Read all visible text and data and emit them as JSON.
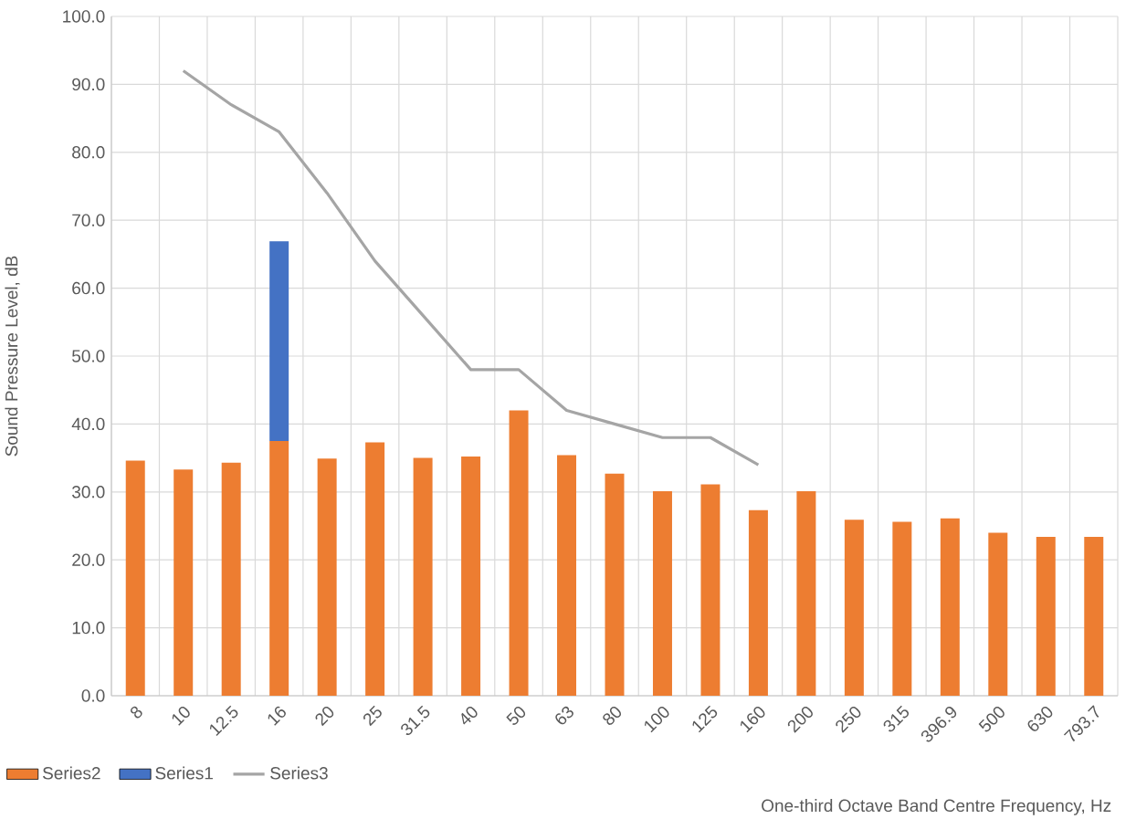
{
  "chart_data": {
    "type": "bar",
    "stacked": true,
    "xlabel": "One-third Octave Band Centre Frequency, Hz",
    "ylabel": "Sound Pressure Level, dB",
    "categories": [
      "8",
      "10",
      "12.5",
      "16",
      "20",
      "25",
      "31.5",
      "40",
      "50",
      "63",
      "80",
      "100",
      "125",
      "160",
      "200",
      "250",
      "315",
      "396.9",
      "500",
      "630",
      "793.7"
    ],
    "series": [
      {
        "name": "Series2",
        "color": "#ed7d31",
        "values": [
          34.6,
          33.3,
          34.3,
          37.5,
          34.9,
          37.3,
          35.0,
          35.2,
          42.0,
          35.4,
          32.7,
          30.1,
          31.1,
          27.3,
          30.1,
          25.9,
          25.6,
          26.1,
          24.0,
          23.4,
          23.4
        ]
      },
      {
        "name": "Series1",
        "color": "#4472c4",
        "values": [
          null,
          null,
          null,
          29.4,
          null,
          null,
          null,
          null,
          null,
          null,
          null,
          null,
          null,
          null,
          null,
          null,
          null,
          null,
          null,
          null,
          null
        ]
      },
      {
        "name": "Series3",
        "type": "line",
        "color": "#a5a5a5",
        "values": [
          null,
          92,
          87,
          83,
          74,
          64,
          56,
          48,
          48,
          42,
          40,
          38,
          38,
          34,
          null,
          null,
          null,
          null,
          null,
          null,
          null
        ]
      }
    ],
    "ylim": [
      0,
      100
    ],
    "yticks": [
      {
        "value": 0,
        "label": "0.0"
      },
      {
        "value": 10,
        "label": "10.0"
      },
      {
        "value": 20,
        "label": "20.0"
      },
      {
        "value": 30,
        "label": "30.0"
      },
      {
        "value": 40,
        "label": "40.0"
      },
      {
        "value": 50,
        "label": "50.0"
      },
      {
        "value": 60,
        "label": "60.0"
      },
      {
        "value": 70,
        "label": "70.0"
      },
      {
        "value": 80,
        "label": "80.0"
      },
      {
        "value": 90,
        "label": "90.0"
      },
      {
        "value": 100,
        "label": "100.0"
      }
    ],
    "grid": true,
    "legend": "bottom left"
  }
}
